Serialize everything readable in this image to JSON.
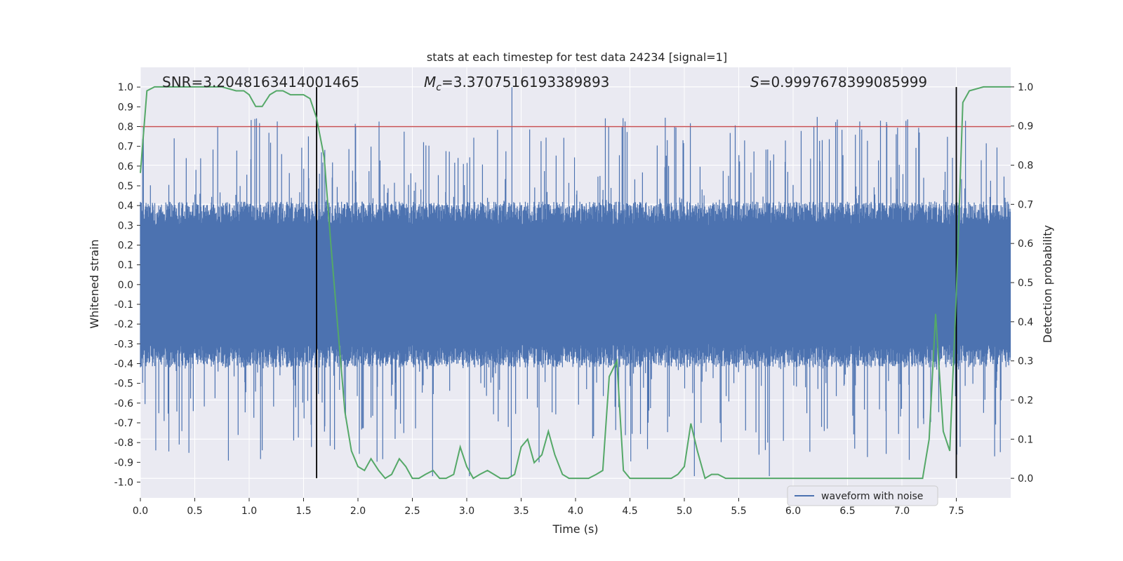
{
  "chart_data": {
    "type": "line",
    "title": "stats at each timestep for test data 24234 [signal=1]",
    "xlabel": "Time (s)",
    "ylabel_left": "Whitened strain",
    "ylabel_right": "Detection probability",
    "xlim": [
      0.0,
      8.0
    ],
    "ylim_left": [
      -1.08,
      1.1
    ],
    "ylim_right": [
      -0.05,
      1.05
    ],
    "x_ticks": [
      "0.0",
      "0.5",
      "1.0",
      "1.5",
      "2.0",
      "2.5",
      "3.0",
      "3.5",
      "4.0",
      "4.5",
      "5.0",
      "5.5",
      "6.0",
      "6.5",
      "7.0",
      "7.5"
    ],
    "y_ticks_left": [
      "1.0",
      "0.9",
      "0.8",
      "0.7",
      "0.6",
      "0.5",
      "0.4",
      "0.3",
      "0.2",
      "0.1",
      "0.0",
      "-0.1",
      "-0.2",
      "-0.3",
      "-0.4",
      "-0.5",
      "-0.6",
      "-0.7",
      "-0.8",
      "-0.9",
      "-1.0"
    ],
    "y_ticks_right": [
      "1.0",
      "0.9",
      "0.8",
      "0.7",
      "0.6",
      "0.5",
      "0.4",
      "0.3",
      "0.2",
      "0.1",
      "0.0"
    ],
    "grid": true,
    "legend": {
      "placement": "bottom-right",
      "entries": [
        "waveform with noise"
      ]
    },
    "annotations": {
      "snr": "SNR=3.2048163414001465",
      "mc_symbol": "M",
      "mc_sub": "c",
      "mc_value": "=3.3707516193389893",
      "s_symbol": "S",
      "s_value": "=0.9997678399085999"
    },
    "threshold": {
      "y": 0.8,
      "color": "#c44e52"
    },
    "vlines": [
      1.62,
      7.5
    ],
    "colors": {
      "waveform": "#4c72b0",
      "probability": "#55a868",
      "threshold": "#c44e52",
      "vline": "#000000",
      "plot_bg": "#eaeaf2"
    },
    "series": [
      {
        "name": "waveform with noise",
        "kind": "noisy-strain",
        "typical_amplitude": 0.4,
        "peak_amplitude": 1.0
      },
      {
        "kind": "probability",
        "x": [
          0.0,
          0.06,
          0.13,
          0.25,
          0.5,
          0.75,
          0.88,
          0.95,
          1.0,
          1.06,
          1.12,
          1.19,
          1.25,
          1.31,
          1.38,
          1.44,
          1.5,
          1.56,
          1.62,
          1.69,
          1.75,
          1.81,
          1.88,
          1.94,
          2.0,
          2.06,
          2.12,
          2.19,
          2.25,
          2.31,
          2.38,
          2.44,
          2.5,
          2.56,
          2.62,
          2.69,
          2.75,
          2.81,
          2.88,
          2.94,
          3.0,
          3.06,
          3.12,
          3.19,
          3.25,
          3.31,
          3.38,
          3.44,
          3.5,
          3.56,
          3.62,
          3.69,
          3.75,
          3.81,
          3.88,
          3.94,
          4.0,
          4.06,
          4.12,
          4.19,
          4.25,
          4.31,
          4.38,
          4.44,
          4.5,
          4.56,
          4.62,
          4.69,
          4.75,
          4.81,
          4.88,
          4.94,
          5.0,
          5.06,
          5.12,
          5.19,
          5.25,
          5.31,
          5.38,
          5.44,
          5.5,
          5.56,
          5.62,
          5.75,
          6.0,
          6.25,
          6.5,
          6.75,
          7.0,
          7.19,
          7.25,
          7.31,
          7.38,
          7.44,
          7.5,
          7.56,
          7.62,
          7.75,
          8.0
        ],
        "y": [
          0.78,
          0.99,
          1.0,
          1.0,
          1.0,
          1.0,
          0.99,
          0.99,
          0.98,
          0.95,
          0.95,
          0.98,
          0.99,
          0.99,
          0.98,
          0.98,
          0.98,
          0.97,
          0.92,
          0.82,
          0.6,
          0.4,
          0.17,
          0.07,
          0.03,
          0.02,
          0.05,
          0.02,
          0.0,
          0.01,
          0.05,
          0.03,
          0.0,
          0.0,
          0.01,
          0.02,
          0.0,
          0.0,
          0.01,
          0.08,
          0.03,
          0.0,
          0.01,
          0.02,
          0.01,
          0.0,
          0.0,
          0.01,
          0.08,
          0.1,
          0.04,
          0.06,
          0.12,
          0.06,
          0.01,
          0.0,
          0.0,
          0.0,
          0.0,
          0.01,
          0.02,
          0.26,
          0.3,
          0.02,
          0.0,
          0.0,
          0.0,
          0.0,
          0.0,
          0.0,
          0.0,
          0.01,
          0.03,
          0.14,
          0.07,
          0.0,
          0.01,
          0.01,
          0.0,
          0.0,
          0.0,
          0.0,
          0.0,
          0.0,
          0.0,
          0.0,
          0.0,
          0.0,
          0.0,
          0.0,
          0.1,
          0.42,
          0.12,
          0.07,
          0.47,
          0.96,
          0.99,
          1.0,
          1.0
        ]
      }
    ]
  }
}
